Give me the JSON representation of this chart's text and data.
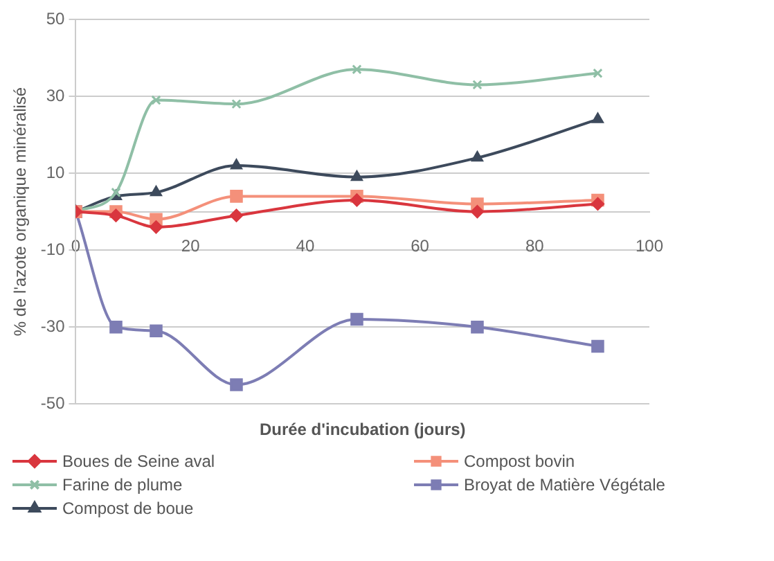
{
  "chart_data": {
    "type": "line",
    "xlabel": "Durée d'incubation (jours)",
    "ylabel": "% de l'azote organique minéralisé",
    "x": [
      0,
      7,
      14,
      28,
      49,
      70,
      91
    ],
    "series": [
      {
        "name": "Boues de Seine aval",
        "color": "#d9363e",
        "marker": "diamond",
        "values": [
          0,
          -1,
          -4,
          -1,
          3,
          0,
          2
        ]
      },
      {
        "name": "Compost bovin",
        "color": "#f4907a",
        "marker": "square",
        "values": [
          0,
          0,
          -2,
          4,
          4,
          2,
          3
        ]
      },
      {
        "name": "Farine de plume",
        "color": "#8fbfa6",
        "marker": "cross",
        "values": [
          0,
          5,
          29,
          28,
          37,
          33,
          36
        ]
      },
      {
        "name": "Broyat de Matière Végétale",
        "color": "#7d7db4",
        "marker": "square",
        "values": [
          0,
          -30,
          -31,
          -45,
          -28,
          -30,
          -35
        ]
      },
      {
        "name": "Compost de boue",
        "color": "#3d4a5c",
        "marker": "triangle",
        "values": [
          0,
          4,
          5,
          12,
          9,
          14,
          24
        ]
      }
    ],
    "xlim": [
      0,
      100
    ],
    "xticks": [
      0,
      20,
      40,
      60,
      80,
      100
    ],
    "ylim": [
      -50,
      50
    ],
    "yticks": [
      50,
      30,
      10,
      -10,
      -30,
      -50
    ],
    "grid": "y",
    "legend": "bottom"
  }
}
